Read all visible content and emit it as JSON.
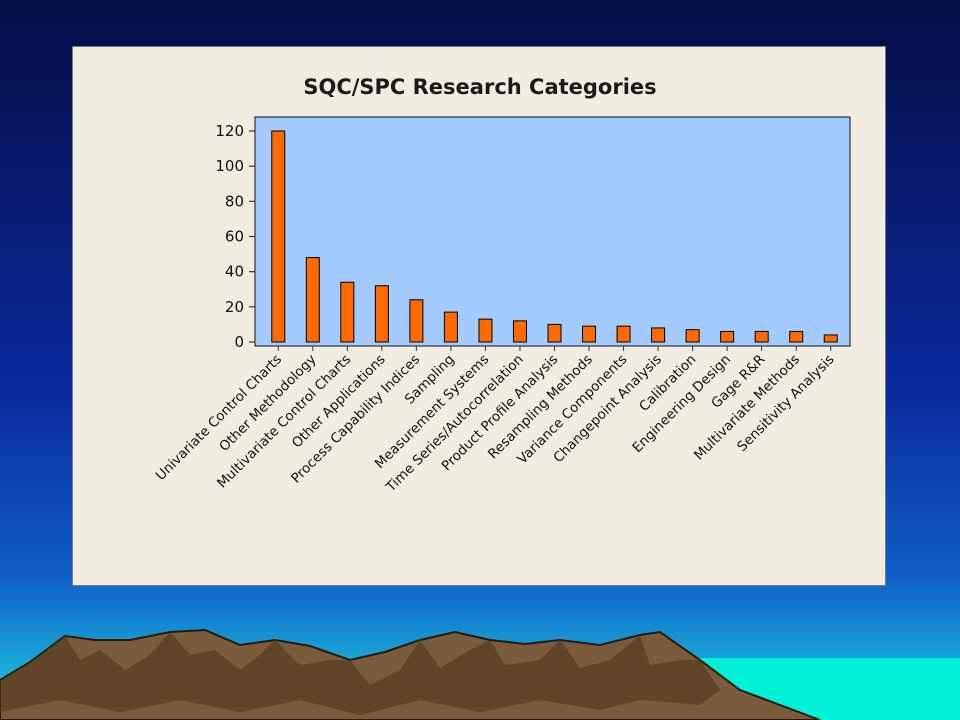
{
  "colors": {
    "bar_fill": "#ff6a00",
    "bar_stroke": "#000000",
    "plot_background": "#a3cbff",
    "panel_background": "#f1ede3",
    "sky_top": "#06104a",
    "sky_bottom": "#1ac8e0",
    "sea": "#00f0d8",
    "mountains": "#7a5c3c"
  },
  "chart_data": {
    "type": "bar",
    "title": "SQC/SPC Research Categories",
    "xlabel": "",
    "ylabel": "",
    "ylim": [
      0,
      120
    ],
    "yticks": [
      0,
      20,
      40,
      60,
      80,
      100,
      120
    ],
    "grid": false,
    "legend": "none",
    "categories": [
      "Univariate Control Charts",
      "Other Methodology",
      "Multivariate Control Charts",
      "Other Applications",
      "Process Capability Indices",
      "Sampling",
      "Measurement Systems",
      "Time Series/Autocorrelation",
      "Product Profile Analysis",
      "Resampling Methods",
      "Variance Components",
      "Changepoint Analysis",
      "Calibration",
      "Engineering Design",
      "Gage R&R",
      "Multivariate Methods",
      "Sensitivity Analysis"
    ],
    "values": [
      120,
      48,
      34,
      32,
      24,
      17,
      13,
      12,
      10,
      9,
      9,
      8,
      7,
      6,
      6,
      6,
      4
    ]
  }
}
